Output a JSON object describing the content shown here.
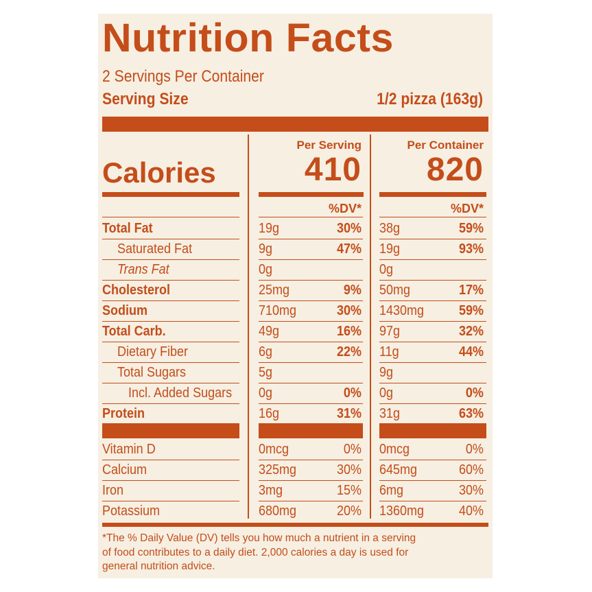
{
  "title": "Nutrition Facts",
  "servings_per_container": "2 Servings Per Container",
  "serving_size_label": "Serving Size",
  "serving_size_value": "1/2 pizza (163g)",
  "calories_label": "Calories",
  "col_per_serving": "Per Serving",
  "col_per_container": "Per Container",
  "calories_serving": "410",
  "calories_container": "820",
  "dv_header": "%DV*",
  "nutrients": [
    {
      "name": "Total Fat",
      "s_amt": "19g",
      "s_dv": "30%",
      "c_amt": "38g",
      "c_dv": "59%"
    },
    {
      "name": "Saturated Fat",
      "s_amt": "9g",
      "s_dv": "47%",
      "c_amt": "19g",
      "c_dv": "93%"
    },
    {
      "name": "Trans Fat",
      "s_amt": "0g",
      "s_dv": "",
      "c_amt": "0g",
      "c_dv": ""
    },
    {
      "name": "Cholesterol",
      "s_amt": "25mg",
      "s_dv": "9%",
      "c_amt": "50mg",
      "c_dv": "17%"
    },
    {
      "name": "Sodium",
      "s_amt": "710mg",
      "s_dv": "30%",
      "c_amt": "1430mg",
      "c_dv": "59%"
    },
    {
      "name": "Total Carb.",
      "s_amt": "49g",
      "s_dv": "16%",
      "c_amt": "97g",
      "c_dv": "32%"
    },
    {
      "name": "Dietary Fiber",
      "s_amt": "6g",
      "s_dv": "22%",
      "c_amt": "11g",
      "c_dv": "44%"
    },
    {
      "name": "Total Sugars",
      "s_amt": "5g",
      "s_dv": "",
      "c_amt": "9g",
      "c_dv": ""
    },
    {
      "name": "Incl. Added Sugars",
      "s_amt": "0g",
      "s_dv": "0%",
      "c_amt": "0g",
      "c_dv": "0%"
    },
    {
      "name": "Protein",
      "s_amt": "16g",
      "s_dv": "31%",
      "c_amt": "31g",
      "c_dv": "63%"
    }
  ],
  "vitamins": [
    {
      "name": "Vitamin D",
      "s_amt": "0mcg",
      "s_dv": "0%",
      "c_amt": "0mcg",
      "c_dv": "0%"
    },
    {
      "name": "Calcium",
      "s_amt": "325mg",
      "s_dv": "30%",
      "c_amt": "645mg",
      "c_dv": "60%"
    },
    {
      "name": "Iron",
      "s_amt": "3mg",
      "s_dv": "15%",
      "c_amt": "6mg",
      "c_dv": "30%"
    },
    {
      "name": "Potassium",
      "s_amt": "680mg",
      "s_dv": "20%",
      "c_amt": "1360mg",
      "c_dv": "40%"
    }
  ],
  "footnote": [
    "*The % Daily Value (DV) tells you how much a nutrient in a serving",
    "of food contributes to a daily diet. 2,000 calories a day is used for",
    "general nutrition advice."
  ],
  "colors": {
    "ink": "#c44d1a",
    "paper": "#f6efe2"
  }
}
